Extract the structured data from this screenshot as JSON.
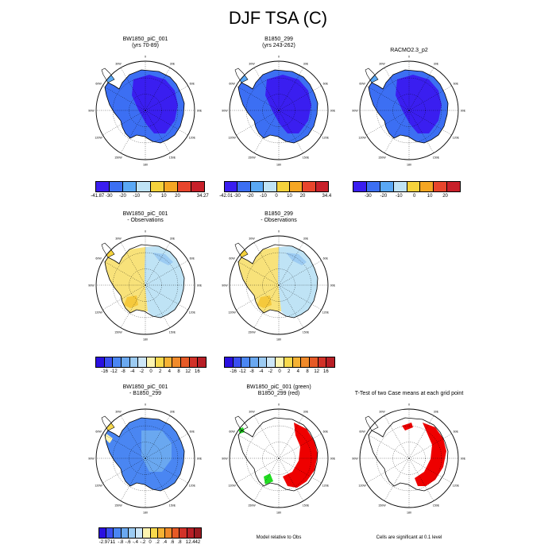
{
  "figure_title": "DJF TSA (C)",
  "chart_data": [
    {
      "type": "map",
      "title": [
        "BW1850_piC_001",
        "(yrs 70-89)"
      ],
      "field": "absolute",
      "colorbar": {
        "colors": [
          "#3a1ef0",
          "#3c6ff3",
          "#5aa8f5",
          "#bfe3f5",
          "#f5d23c",
          "#f5a623",
          "#e8452c",
          "#c8202a"
        ],
        "labels": [
          "-41.87",
          "-30",
          "-20",
          "-10",
          "0",
          "10",
          "20",
          "34.27"
        ]
      }
    },
    {
      "type": "map",
      "title": [
        "B1850_299",
        "(yrs 243-262)"
      ],
      "field": "absolute",
      "colorbar": {
        "colors": [
          "#3a1ef0",
          "#3c6ff3",
          "#5aa8f5",
          "#bfe3f5",
          "#f5d23c",
          "#f5a623",
          "#e8452c",
          "#c8202a"
        ],
        "labels": [
          "-42.01",
          "-30",
          "-20",
          "-10",
          "0",
          "10",
          "20",
          "34.4"
        ]
      }
    },
    {
      "type": "map",
      "title": [
        "RACMO2.3_p2"
      ],
      "field": "absolute",
      "colorbar": {
        "colors": [
          "#3a1ef0",
          "#3c6ff3",
          "#5aa8f5",
          "#bfe3f5",
          "#f5d23c",
          "#f5a623",
          "#e8452c",
          "#c8202a"
        ],
        "labels": [
          "-30",
          "-20",
          "-10",
          "0",
          "10",
          "20"
        ]
      }
    },
    {
      "type": "map",
      "title": [
        "BW1850_piC_001",
        "- Observations"
      ],
      "field": "diff",
      "colorbar": {
        "colors": [
          "#2a10e0",
          "#3a4ff0",
          "#4a86f2",
          "#6aa8f0",
          "#9ccbf2",
          "#cde6f7",
          "#fdf4b0",
          "#f8d94c",
          "#f5b234",
          "#f08a2a",
          "#e65a26",
          "#d23228",
          "#b81f26"
        ],
        "labels": [
          "-16",
          "-12",
          "-8",
          "-4",
          "-2",
          "0",
          "2",
          "4",
          "8",
          "12",
          "16"
        ]
      }
    },
    {
      "type": "map",
      "title": [
        "B1850_299",
        "- Observations"
      ],
      "field": "diff",
      "colorbar": {
        "colors": [
          "#2a10e0",
          "#3a4ff0",
          "#4a86f2",
          "#6aa8f0",
          "#9ccbf2",
          "#cde6f7",
          "#fdf4b0",
          "#f8d94c",
          "#f5b234",
          "#f08a2a",
          "#e65a26",
          "#d23228",
          "#b81f26"
        ],
        "labels": [
          "-16",
          "-12",
          "-8",
          "-4",
          "-2",
          "0",
          "2",
          "4",
          "8",
          "12",
          "16"
        ]
      }
    },
    {
      "type": "map",
      "title": [
        "BW1850_piC_001",
        "- B1850_299"
      ],
      "field": "diff2",
      "colorbar": {
        "colors": [
          "#2a10e0",
          "#3a4ff0",
          "#4a86f2",
          "#6aa8f0",
          "#9ccbf2",
          "#cde6f7",
          "#fdf4b0",
          "#f8d94c",
          "#f5b234",
          "#f08a2a",
          "#e65a26",
          "#d23228",
          "#b81f26",
          "#9a1a20"
        ],
        "labels": [
          "-2.971",
          "-1",
          "-.8",
          "-.6",
          "-.4",
          "-.2",
          "0",
          ".2",
          ".4",
          ".6",
          ".8",
          "1",
          "2.442"
        ]
      }
    },
    {
      "type": "map",
      "title": [
        "BW1850_piC_001 (green)",
        "B1850_299 (red)"
      ],
      "field": "compare",
      "note": "Model relative to Obs"
    },
    {
      "type": "map",
      "title": [
        "T-Test of two Case means at each grid point"
      ],
      "field": "ttest",
      "note": "Cells are significant at 0.1 level"
    }
  ],
  "map_labels": {
    "lon": [
      "0",
      "30E",
      "60E",
      "90E",
      "120E",
      "150E",
      "180",
      "150W",
      "120W",
      "90W",
      "60W",
      "30W"
    ]
  },
  "colors": {
    "coast": "#000000",
    "significant": "#ee0000",
    "green": "#22dd22"
  }
}
